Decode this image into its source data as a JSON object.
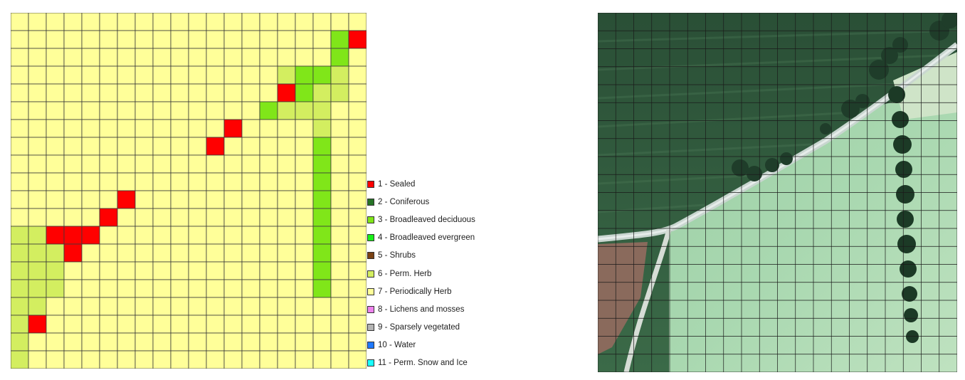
{
  "legend": [
    {
      "label": "1 - Sealed",
      "color": "#ff0000"
    },
    {
      "label": "2 - Coniferous",
      "color": "#267326"
    },
    {
      "label": "3 - Broadleaved deciduous",
      "color": "#80e619"
    },
    {
      "label": "4 - Broadleaved evergreen",
      "color": "#19f019"
    },
    {
      "label": "5 - Shrubs",
      "color": "#7a4113"
    },
    {
      "label": "6 - Perm. Herb",
      "color": "#d3ee60"
    },
    {
      "label": "7 - Periodically Herb",
      "color": "#ffff99"
    },
    {
      "label": "8 - Lichens and mosses",
      "color": "#ee82ee"
    },
    {
      "label": "9 - Sparsely vegetated",
      "color": "#b4b4b4"
    },
    {
      "label": "10 - Water",
      "color": "#1e78ff"
    },
    {
      "label": "11 - Perm. Snow and Ice",
      "color": "#19ffff"
    }
  ],
  "class_grid": {
    "columns": 20,
    "rows": 20,
    "background_class": 7,
    "cells": [
      [
        1,
        18,
        3
      ],
      [
        1,
        19,
        1
      ],
      [
        2,
        18,
        3
      ],
      [
        3,
        15,
        6
      ],
      [
        3,
        16,
        3
      ],
      [
        3,
        17,
        3
      ],
      [
        3,
        18,
        6
      ],
      [
        4,
        15,
        1
      ],
      [
        4,
        16,
        3
      ],
      [
        4,
        17,
        6
      ],
      [
        4,
        18,
        6
      ],
      [
        5,
        14,
        3
      ],
      [
        5,
        15,
        6
      ],
      [
        5,
        16,
        6
      ],
      [
        5,
        17,
        6
      ],
      [
        6,
        12,
        1
      ],
      [
        6,
        17,
        6
      ],
      [
        7,
        11,
        1
      ],
      [
        7,
        17,
        3
      ],
      [
        8,
        17,
        3
      ],
      [
        9,
        17,
        3
      ],
      [
        10,
        6,
        1
      ],
      [
        10,
        17,
        3
      ],
      [
        11,
        5,
        1
      ],
      [
        11,
        17,
        3
      ],
      [
        12,
        0,
        6
      ],
      [
        12,
        1,
        6
      ],
      [
        12,
        2,
        1
      ],
      [
        12,
        3,
        1
      ],
      [
        12,
        4,
        1
      ],
      [
        12,
        17,
        3
      ],
      [
        13,
        0,
        6
      ],
      [
        13,
        1,
        6
      ],
      [
        13,
        2,
        6
      ],
      [
        13,
        3,
        1
      ],
      [
        13,
        17,
        3
      ],
      [
        14,
        0,
        6
      ],
      [
        14,
        1,
        6
      ],
      [
        14,
        2,
        6
      ],
      [
        14,
        17,
        3
      ],
      [
        15,
        0,
        6
      ],
      [
        15,
        1,
        6
      ],
      [
        15,
        2,
        6
      ],
      [
        15,
        17,
        3
      ],
      [
        16,
        0,
        6
      ],
      [
        16,
        1,
        6
      ],
      [
        17,
        0,
        6
      ],
      [
        17,
        1,
        1
      ],
      [
        18,
        0,
        6
      ],
      [
        19,
        0,
        6
      ]
    ]
  },
  "imagery_grid": {
    "columns": 20,
    "rows": 20
  }
}
